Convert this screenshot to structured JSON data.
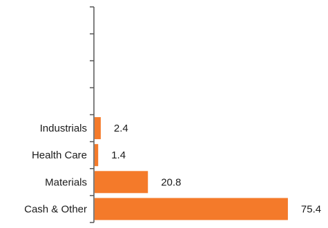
{
  "chart_data": {
    "type": "bar",
    "orientation": "horizontal",
    "categories": [
      "",
      "",
      "",
      "",
      "Industrials",
      "Health Care",
      "Materials",
      "Cash & Other"
    ],
    "values": [
      null,
      null,
      null,
      null,
      2.4,
      1.4,
      20.8,
      75.4
    ],
    "value_labels": [
      "",
      "",
      "",
      "",
      "2.4",
      "1.4",
      "20.8",
      "75.4"
    ],
    "title": "",
    "xlabel": "",
    "ylabel": "",
    "xlim": [
      0,
      80
    ],
    "grid": false,
    "legend": "none",
    "colors": {
      "bar": "#F47A2A",
      "axis": "#555555",
      "text": "#1a1a1a"
    }
  }
}
